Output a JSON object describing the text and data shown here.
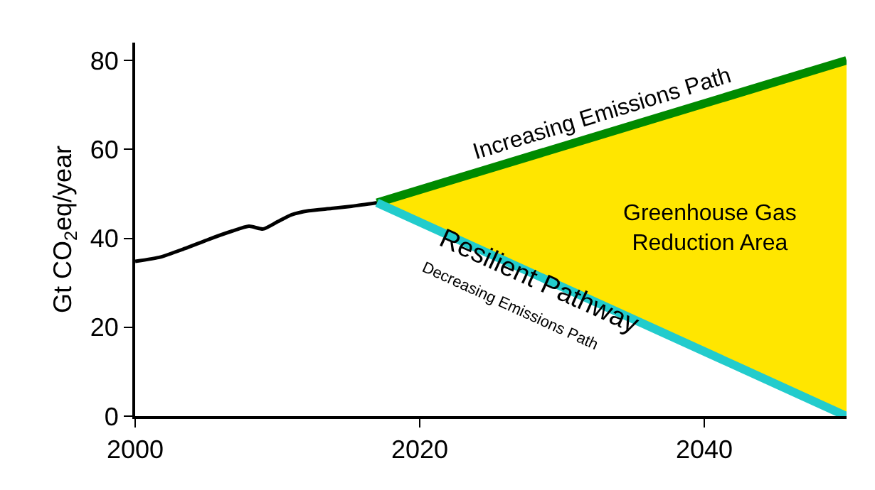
{
  "chart_data": {
    "type": "line",
    "ylabel": "Gt CO$_{2}$eq/year",
    "xlim": [
      2000,
      2050
    ],
    "xticks": [
      2000,
      2020,
      2040
    ],
    "ylim": [
      0,
      84
    ],
    "yticks": [
      0,
      20,
      40,
      60,
      80
    ],
    "grid": false,
    "legend": false,
    "series": [
      {
        "color": "#000000",
        "x": [
          2000,
          2001.8,
          2003.5,
          2005.2,
          2006.8,
          2008,
          2009,
          2010,
          2011,
          2012.2,
          2013.8,
          2015.2,
          2017
        ],
        "values": [
          34.8,
          35.8,
          37.7,
          39.8,
          41.6,
          42.7,
          42.1,
          43.7,
          45.3,
          46.2,
          46.7,
          47.2,
          48.0
        ]
      },
      {
        "type": "line",
        "name": "Increasing Emissions Path",
        "color": "#008a00",
        "x": [
          2017,
          2050
        ],
        "values": [
          48.0,
          80
        ],
        "lower": [
          48.0,
          0
        ],
        "upper": [
          48.0,
          80
        ]
      },
      {
        "type": "line",
        "name": "Resilient Pathway",
        "color": "#22cccc",
        "x": [
          2017,
          2050
        ],
        "values": [
          48.0,
          0
        ]
      }
    ],
    "annotations": [
      "Decreasing Emissions Path",
      "Greenhouse Gas\nReduction Area"
    ]
  }
}
